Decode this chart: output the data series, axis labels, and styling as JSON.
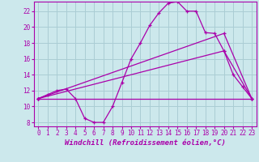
{
  "xlabel": "Windchill (Refroidissement éolien,°C)",
  "xlim": [
    -0.5,
    23.5
  ],
  "ylim": [
    7.5,
    23.2
  ],
  "xticks": [
    0,
    1,
    2,
    3,
    4,
    5,
    6,
    7,
    8,
    9,
    10,
    11,
    12,
    13,
    14,
    15,
    16,
    17,
    18,
    19,
    20,
    21,
    22,
    23
  ],
  "yticks": [
    8,
    10,
    12,
    14,
    16,
    18,
    20,
    22
  ],
  "bg_color": "#cce8ec",
  "line_color": "#aa00aa",
  "grid_color": "#aacdd4",
  "line1_x": [
    0,
    1,
    2,
    3,
    4,
    5,
    6,
    7,
    8,
    9,
    10,
    11,
    12,
    13,
    14,
    15,
    16,
    17,
    18,
    19,
    20,
    21,
    22,
    23
  ],
  "line1_y": [
    11.0,
    11.5,
    12.0,
    12.2,
    11.0,
    8.5,
    8.0,
    8.0,
    10.0,
    13.0,
    16.0,
    18.0,
    20.2,
    21.8,
    23.0,
    23.2,
    22.0,
    22.0,
    19.3,
    19.2,
    17.0,
    14.0,
    12.5,
    11.0
  ],
  "line2_x": [
    0,
    23
  ],
  "line2_y": [
    11.0,
    11.0
  ],
  "line3_x": [
    0,
    20,
    23
  ],
  "line3_y": [
    11.0,
    19.2,
    11.0
  ],
  "line4_x": [
    0,
    20,
    23
  ],
  "line4_y": [
    11.0,
    17.0,
    11.0
  ],
  "font_name": "monospace",
  "xlabel_fontsize": 6.5,
  "tick_fontsize": 5.5
}
